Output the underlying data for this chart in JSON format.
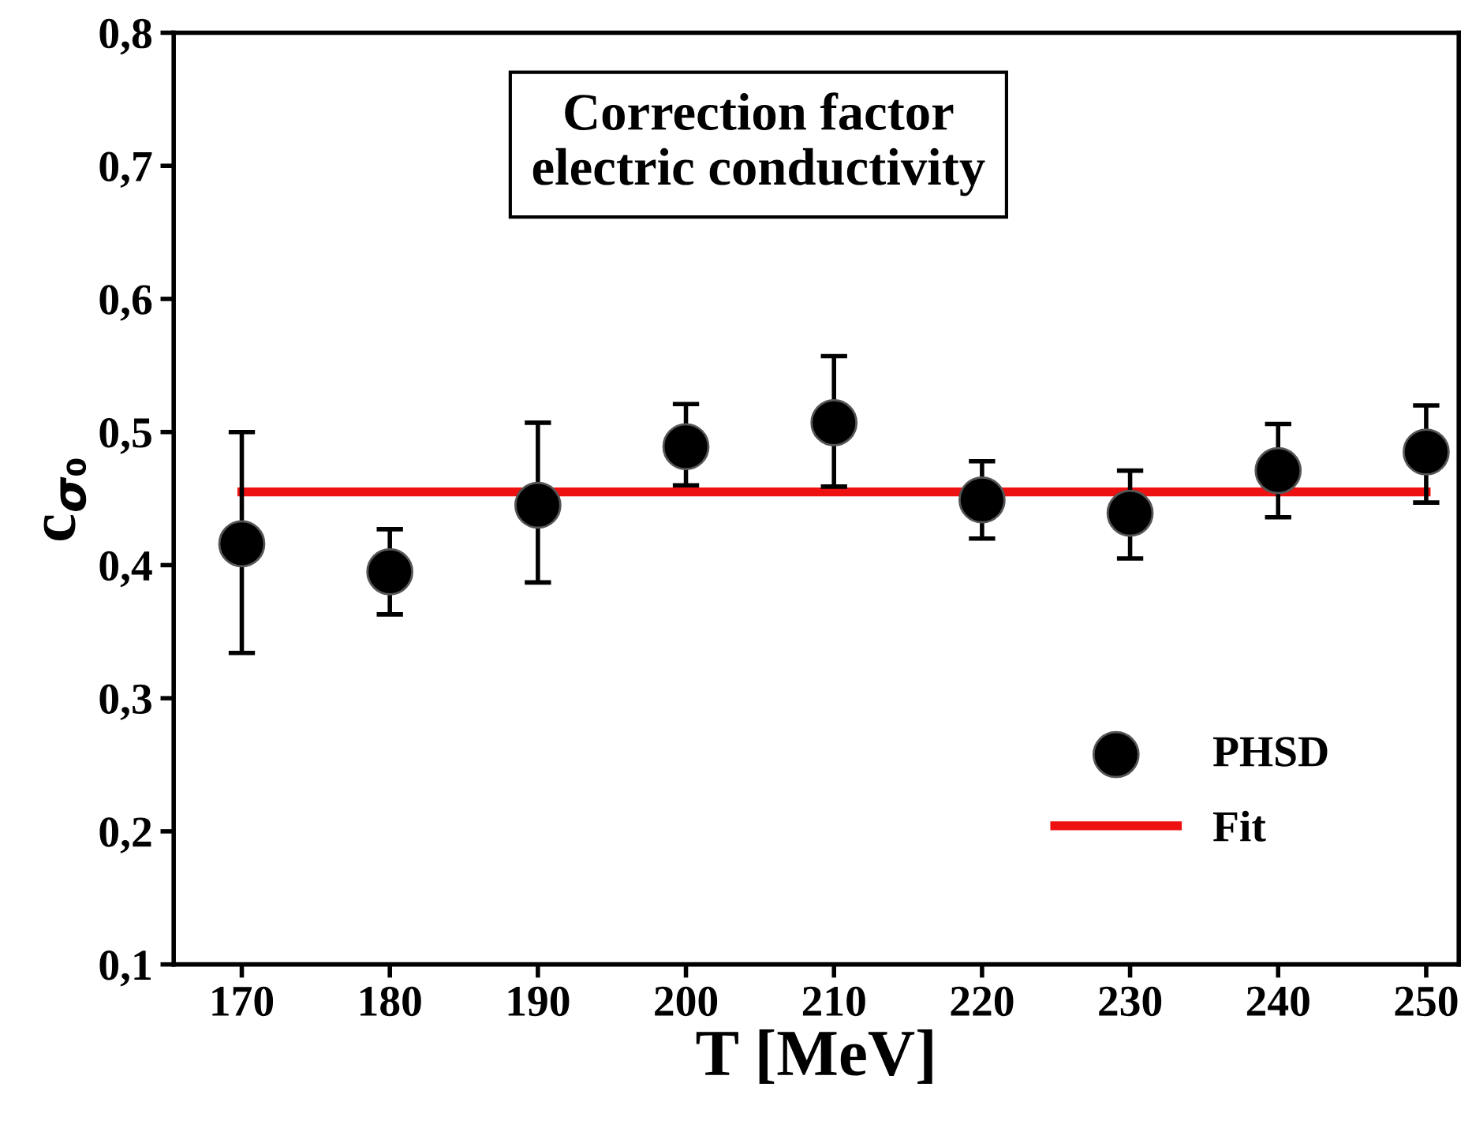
{
  "chart_data": {
    "type": "scatter",
    "xlabel": "T [MeV]",
    "ylabel": "c$_{σ₀}$",
    "annotations": [
      "Correction factor\nelectric conductivity"
    ],
    "xlim": [
      165.4,
      252.2
    ],
    "ylim": [
      0.1,
      0.8
    ],
    "xticks": [
      170,
      180,
      190,
      200,
      210,
      220,
      230,
      240,
      250
    ],
    "yticks": [
      {
        "value": 0.1,
        "label": "0,1"
      },
      {
        "value": 0.2,
        "label": "0,2"
      },
      {
        "value": 0.3,
        "label": "0,3"
      },
      {
        "value": 0.4,
        "label": "0,4"
      },
      {
        "value": 0.5,
        "label": "0,5"
      },
      {
        "value": 0.6,
        "label": "0,6"
      },
      {
        "value": 0.7,
        "label": "0,7"
      },
      {
        "value": 0.8,
        "label": "0,8"
      }
    ],
    "legend": "bottom right",
    "grid": false,
    "series": [
      {
        "name": "PHSD",
        "color": "#000000",
        "marker": "circle",
        "x": [
          170,
          180,
          190,
          200,
          210,
          220,
          230,
          240,
          250
        ],
        "values": [
          0.416,
          0.395,
          0.445,
          0.489,
          0.507,
          0.449,
          0.439,
          0.471,
          0.485
        ],
        "errors": [
          [
            0.334,
            0.5
          ],
          [
            0.363,
            0.427
          ],
          [
            0.387,
            0.507
          ],
          [
            0.46,
            0.521
          ],
          [
            0.459,
            0.557
          ],
          [
            0.42,
            0.478
          ],
          [
            0.405,
            0.471
          ],
          [
            0.436,
            0.506
          ],
          [
            0.447,
            0.52
          ]
        ]
      },
      {
        "name": "Fit",
        "type": "line",
        "color": "#ee1111",
        "line_style": "solid",
        "x": [
          170,
          250
        ],
        "values": [
          0.455,
          0.455
        ]
      }
    ]
  }
}
